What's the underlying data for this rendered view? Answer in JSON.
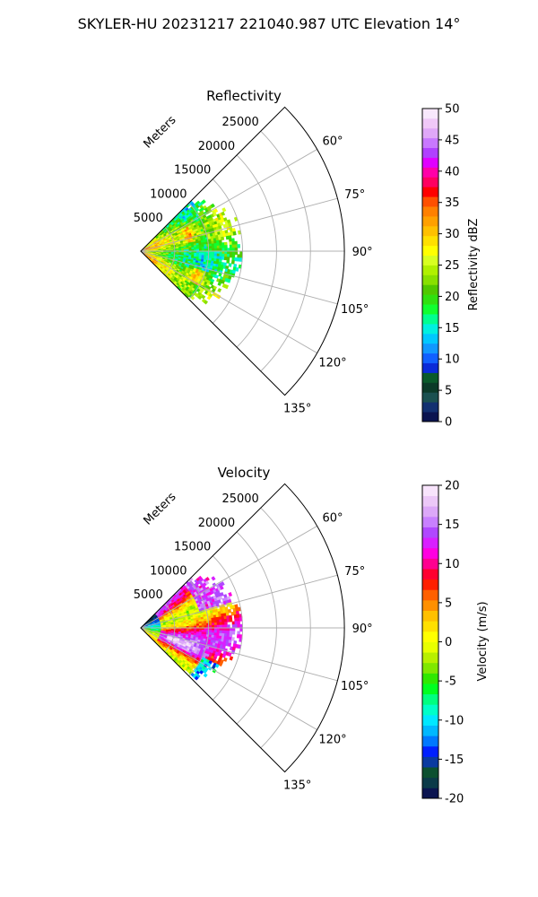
{
  "suptitle": "SKYLER-HU  20231217  221040.987 UTC Elevation 14°",
  "chart_data": [
    {
      "type": "polar-sector-heatmap",
      "title": "Reflectivity",
      "radial_label": "Meters",
      "radial_ticks": [
        5000,
        10000,
        15000,
        20000,
        25000
      ],
      "radial_range": [
        0,
        30000
      ],
      "azimuth_range_deg": [
        45,
        135
      ],
      "azimuth_ticks": [
        60,
        75,
        90,
        105,
        120,
        135
      ],
      "data_extent_m": 15000,
      "colorbar": {
        "label": "Reflectivity dBZ",
        "range": [
          0,
          50
        ],
        "ticks": [
          0,
          5,
          10,
          15,
          20,
          25,
          30,
          35,
          40,
          45,
          50
        ]
      },
      "dominant_value_range": [
        18,
        30
      ]
    },
    {
      "type": "polar-sector-heatmap",
      "title": "Velocity",
      "radial_label": "Meters",
      "radial_ticks": [
        5000,
        10000,
        15000,
        20000,
        25000
      ],
      "radial_range": [
        0,
        30000
      ],
      "azimuth_range_deg": [
        45,
        135
      ],
      "azimuth_ticks": [
        60,
        75,
        90,
        105,
        120,
        135
      ],
      "data_extent_m": 15000,
      "colorbar": {
        "label": "Velocity (m/s)",
        "range": [
          -20,
          20
        ],
        "ticks": [
          -20,
          -15,
          -10,
          -5,
          0,
          5,
          10,
          15,
          20
        ]
      },
      "dominant_value_range": [
        -12,
        15
      ]
    }
  ],
  "colormaps": {
    "reflectivity": [
      "#0b1450",
      "#123070",
      "#1a5050",
      "#0b3a28",
      "#0a5a2a",
      "#0a2ad8",
      "#1060ff",
      "#1098ff",
      "#00c8ff",
      "#00f0e0",
      "#00ff90",
      "#10ff30",
      "#30e010",
      "#50c800",
      "#88e000",
      "#b0f000",
      "#d8ff20",
      "#ffff00",
      "#ffe000",
      "#ffc000",
      "#ffa000",
      "#ff8000",
      "#ff5000",
      "#ff0000",
      "#ff0060",
      "#ff00a8",
      "#e000ff",
      "#b040ff",
      "#c878ff",
      "#e0a8f8",
      "#f0c8f8",
      "#f8e8fc"
    ],
    "velocity": [
      "#0b1450",
      "#0b3a48",
      "#0c5030",
      "#0a3aa0",
      "#0020ff",
      "#0078ff",
      "#00b8ff",
      "#00e8ff",
      "#00ffc8",
      "#00ff80",
      "#00ff20",
      "#30e800",
      "#80e800",
      "#b8f000",
      "#e8ff00",
      "#ffff00",
      "#ffe000",
      "#ffc000",
      "#ff9000",
      "#ff6000",
      "#ff2000",
      "#ff0030",
      "#ff0090",
      "#ff00e0",
      "#d820ff",
      "#b048ff",
      "#c880ff",
      "#dca8f8",
      "#ecc8f8",
      "#f8e4fc"
    ]
  }
}
